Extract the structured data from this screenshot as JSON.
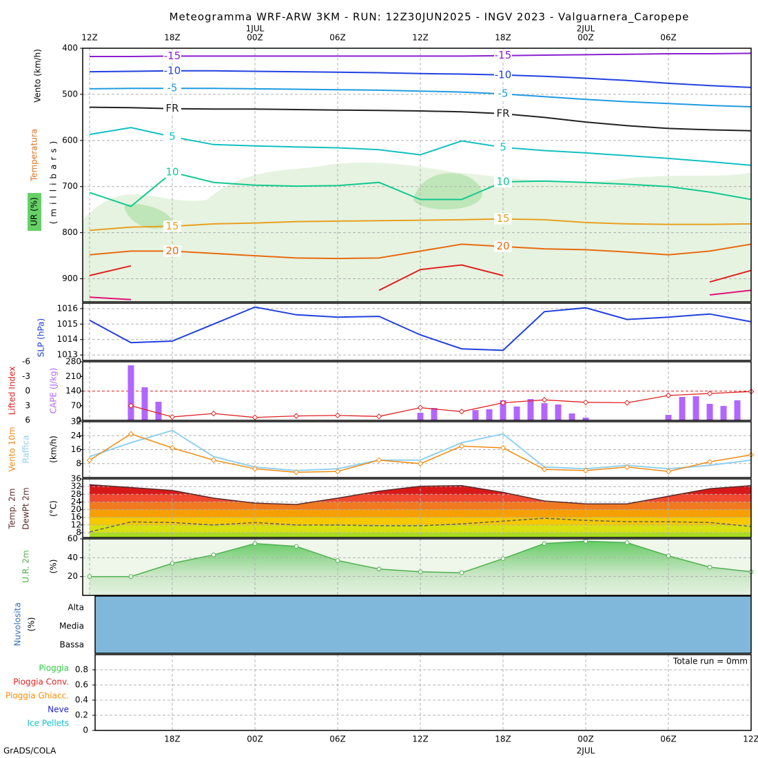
{
  "credit": "GrADS/COLA",
  "chart_data": [
    {
      "type": "contour",
      "title": "Meteogramma WRF-ARW 3KM - RUN: 12Z30JUN2025 - INGV 2023 - Valguarnera_Caropepe",
      "ylabel_wind": "Vento (km/h)",
      "ylabel_temp": "Temperatura",
      "ylabel_rh": "UR (%)",
      "ylabel": "(millibars)",
      "xlim": [
        0,
        48
      ],
      "xticks": [
        {
          "value": 0,
          "label": "12Z"
        },
        {
          "value": 6,
          "label": "18Z"
        },
        {
          "value": 12,
          "label": "00Z"
        },
        {
          "value": 18,
          "label": "06Z"
        },
        {
          "value": 24,
          "label": "12Z"
        },
        {
          "value": 30,
          "label": "18Z"
        },
        {
          "value": 36,
          "label": "00Z"
        },
        {
          "value": 42,
          "label": "06Z"
        }
      ],
      "date_labels": [
        {
          "value": 12,
          "label": "1JUL"
        },
        {
          "value": 36,
          "label": "2JUL"
        }
      ],
      "ylim": [
        950,
        400
      ],
      "yticks": [
        400,
        500,
        600,
        700,
        800,
        900
      ],
      "grid": true,
      "x": [
        0,
        3,
        6,
        9,
        12,
        15,
        18,
        21,
        24,
        27,
        30,
        33,
        36,
        39,
        42,
        45,
        48
      ],
      "series": [
        {
          "name": "-15",
          "color": "#8a1ed0",
          "values": [
            418,
            418,
            417,
            417,
            417,
            417,
            417,
            417,
            417,
            417,
            416,
            415,
            414,
            413,
            412,
            412,
            411
          ]
        },
        {
          "name": "-10",
          "color": "#2040e0",
          "values": [
            451,
            450,
            449,
            449,
            450,
            451,
            452,
            453,
            455,
            456,
            458,
            461,
            465,
            470,
            476,
            481,
            485
          ]
        },
        {
          "name": "-5",
          "color": "#1e9be0",
          "values": [
            488,
            487,
            487,
            487,
            488,
            489,
            490,
            491,
            493,
            495,
            499,
            505,
            511,
            516,
            520,
            524,
            527
          ]
        },
        {
          "name": "FR",
          "color": "#202020",
          "values": [
            528,
            529,
            531,
            532,
            532,
            533,
            534,
            535,
            536,
            538,
            542,
            550,
            560,
            568,
            574,
            577,
            579
          ]
        },
        {
          "name": "5",
          "color": "#10c0c0",
          "values": [
            587,
            572,
            592,
            609,
            612,
            614,
            616,
            620,
            631,
            601,
            615,
            622,
            627,
            633,
            639,
            646,
            654
          ]
        },
        {
          "name": "10",
          "color": "#10c890",
          "values": [
            713,
            743,
            669,
            691,
            697,
            699,
            698,
            691,
            728,
            728,
            690,
            688,
            691,
            695,
            700,
            712,
            728
          ]
        },
        {
          "name": "15",
          "color": "#e8a020",
          "values": [
            795,
            788,
            786,
            781,
            779,
            776,
            775,
            774,
            773,
            772,
            770,
            772,
            778,
            781,
            782,
            782,
            781
          ]
        },
        {
          "name": "20",
          "color": "#e86a10",
          "values": [
            848,
            840,
            840,
            845,
            850,
            855,
            856,
            855,
            840,
            825,
            830,
            835,
            837,
            842,
            848,
            840,
            825
          ]
        },
        {
          "color": "#e02020",
          "values": [
            893,
            872,
            null,
            null,
            null,
            null,
            null,
            925,
            880,
            870,
            893,
            null,
            null,
            null,
            null,
            907,
            882
          ]
        },
        {
          "color": "#e0107a",
          "values": [
            940,
            945,
            null,
            null,
            null,
            null,
            null,
            null,
            null,
            null,
            null,
            null,
            null,
            null,
            null,
            935,
            925
          ]
        }
      ]
    },
    {
      "type": "line",
      "ylabel": "SLP (hPa)",
      "xlim": [
        0,
        48
      ],
      "ylim": [
        1012.65,
        1016.35
      ],
      "yticks": [
        1013,
        1014,
        1015,
        1016
      ],
      "x": [
        0,
        3,
        6,
        9,
        12,
        15,
        18,
        21,
        24,
        27,
        30,
        33,
        36,
        39,
        42,
        45,
        48
      ],
      "series": [
        {
          "color": "#1f3fdc",
          "values": [
            1015.25,
            1013.8,
            1013.9,
            1015.0,
            1016.1,
            1015.6,
            1015.45,
            1015.5,
            1014.3,
            1013.4,
            1013.3,
            1015.8,
            1016.05,
            1015.3,
            1015.45,
            1015.65,
            1015.15
          ]
        }
      ]
    },
    {
      "type": "bar",
      "ylabel": "CAPE (J/kg)",
      "y2label": "Lifted Index",
      "xlim": [
        0,
        48
      ],
      "ylim": [
        0,
        280
      ],
      "yticks": [
        0,
        70,
        140,
        210,
        280
      ],
      "y2lim": [
        6,
        -6
      ],
      "y2ticks": [
        -6,
        -3,
        0,
        3,
        6
      ],
      "y2_reference": 0,
      "series": [
        {
          "type": "bar",
          "color": "#b266ff",
          "x": [
            3,
            4,
            5,
            24,
            25,
            28,
            29,
            30,
            31,
            32,
            33,
            34,
            35,
            36,
            42,
            43,
            44,
            45,
            46,
            47
          ],
          "values": [
            263,
            158,
            89,
            36,
            59,
            49,
            53,
            96,
            66,
            102,
            82,
            76,
            33,
            13,
            26,
            112,
            115,
            79,
            69,
            96
          ]
        },
        {
          "axis": "y2",
          "color": "#e02020",
          "marker": "diamond",
          "x": [
            0,
            3,
            6,
            9,
            12,
            15,
            18,
            21,
            24,
            27,
            30,
            33,
            36,
            39,
            42,
            45,
            48
          ],
          "values": [
            null,
            3.0,
            5.3,
            4.6,
            5.4,
            5.1,
            5.0,
            5.2,
            3.4,
            4.2,
            2.4,
            1.8,
            2.3,
            2.4,
            0.9,
            0.5,
            0.1
          ]
        }
      ]
    },
    {
      "type": "line",
      "ylabel": "(km/h)",
      "xlim": [
        0,
        48
      ],
      "ylim": [
        0,
        32
      ],
      "yticks": [
        8,
        16,
        24,
        32
      ],
      "x": [
        0,
        3,
        6,
        9,
        12,
        15,
        18,
        21,
        24,
        27,
        30,
        33,
        36,
        39,
        42,
        45,
        48
      ],
      "series": [
        {
          "name": "Raffica",
          "color": "#8fd0f0",
          "values": [
            12,
            20,
            27,
            12,
            6,
            4,
            5,
            10,
            10,
            20,
            25,
            6,
            5,
            7,
            5,
            7,
            10
          ]
        },
        {
          "name": "Vento 10m",
          "color": "#f08a10",
          "marker": "diamond",
          "values": [
            9.9,
            25,
            17,
            10,
            5,
            3,
            3.5,
            10,
            8,
            18,
            17,
            4.7,
            4,
            6,
            3.5,
            9,
            13
          ]
        }
      ]
    },
    {
      "type": "area",
      "ylabel": "(°C)",
      "xlim": [
        0,
        48
      ],
      "ylim": [
        5.5,
        36
      ],
      "yticks": [
        8,
        12,
        16,
        20,
        24,
        28,
        32,
        36
      ],
      "band_colors": [
        "#a8dc20",
        "#d8e010",
        "#f5c800",
        "#f5a000",
        "#f07a20",
        "#f04a30",
        "#d81818",
        "#b80030"
      ],
      "x": [
        0,
        3,
        6,
        9,
        12,
        15,
        18,
        21,
        24,
        27,
        30,
        33,
        36,
        39,
        42,
        45,
        48
      ],
      "series": [
        {
          "name": "Temp. 2m",
          "color": "#5a2a2a",
          "area": true,
          "values": [
            33,
            31.5,
            30,
            26,
            23.4,
            22.7,
            26,
            29.6,
            32.2,
            32.5,
            29,
            24.5,
            23,
            23,
            27,
            30.9,
            32.5
          ]
        },
        {
          "name": "DewPt 2m",
          "color": "#606060",
          "style": "dashed",
          "values": [
            8.4,
            13.6,
            13.3,
            12,
            13.3,
            12,
            12,
            11.6,
            11.6,
            12.6,
            14,
            15.5,
            14.4,
            13.7,
            13.7,
            13.3,
            11.2
          ]
        }
      ]
    },
    {
      "type": "area",
      "ylabel": "(%)",
      "xlim": [
        0,
        48
      ],
      "ylim": [
        0,
        60
      ],
      "yticks": [
        20,
        40,
        60
      ],
      "x": [
        0,
        3,
        6,
        9,
        12,
        15,
        18,
        21,
        24,
        27,
        30,
        33,
        36,
        39,
        42,
        45,
        48
      ],
      "series": [
        {
          "name": "U.R. 2m",
          "color": "#50b050",
          "area": true,
          "marker": "circle",
          "values": [
            20,
            20,
            34,
            43,
            55,
            52,
            37,
            28,
            25,
            24,
            39,
            55,
            57.5,
            56,
            42,
            30,
            25
          ]
        }
      ]
    },
    {
      "type": "cloud",
      "ylabel": "Nuvolosita",
      "unit": "(%)",
      "levels": [
        "Alta",
        "Media",
        "Bassa"
      ],
      "color": "#80b8dc"
    },
    {
      "type": "precip",
      "total_label": "Totale run = 0mm",
      "xlim": [
        0,
        48
      ],
      "ylim": [
        0,
        1
      ],
      "yticks": [
        0,
        0.2,
        0.4,
        0.6,
        0.8
      ],
      "grid": true,
      "xticks": [
        {
          "value": 6,
          "label": "18Z"
        },
        {
          "value": 12,
          "label": "00Z"
        },
        {
          "value": 18,
          "label": "06Z"
        },
        {
          "value": 24,
          "label": "12Z"
        },
        {
          "value": 30,
          "label": "18Z"
        },
        {
          "value": 36,
          "label": "00Z"
        },
        {
          "value": 42,
          "label": "06Z"
        },
        {
          "value": 48,
          "label": "12Z"
        }
      ],
      "date_labels": [
        {
          "value": 36,
          "label": "2JUL"
        }
      ],
      "series": [
        {
          "name": "Pioggia",
          "color": "#2ecc40"
        },
        {
          "name": "Pioggia Conv.",
          "color": "#e02020"
        },
        {
          "name": "Pioggia Ghiacc.",
          "color": "#ff8c00"
        },
        {
          "name": "Neve",
          "color": "#2020e0"
        },
        {
          "name": "Ice Pellets",
          "color": "#10c0d0"
        }
      ]
    }
  ]
}
